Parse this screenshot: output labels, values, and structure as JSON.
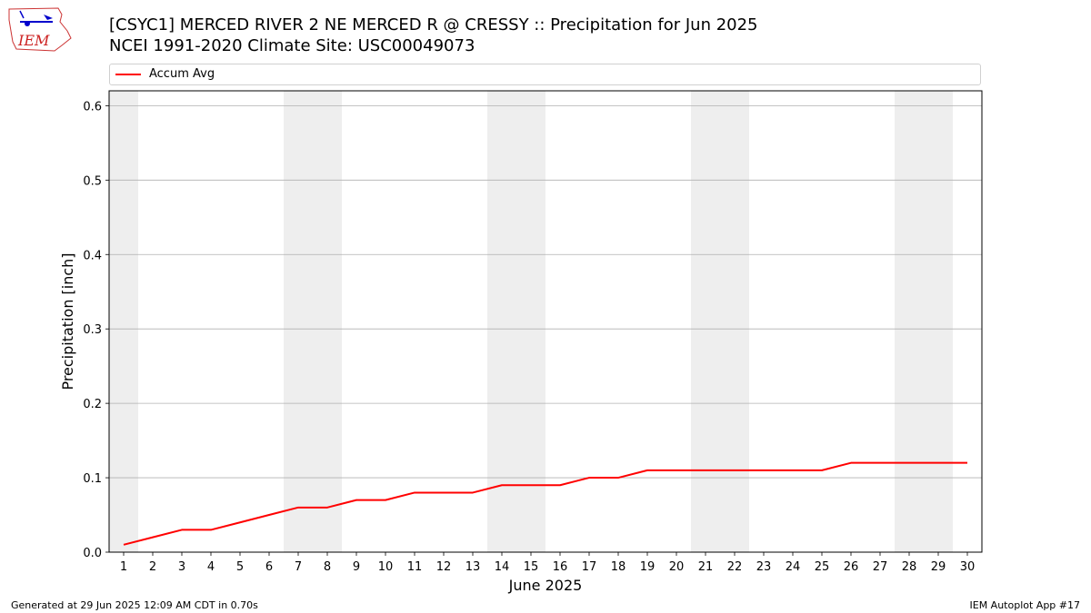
{
  "header": {
    "title_line1": "[CSYC1] MERCED RIVER 2 NE MERCED R @ CRESSY :: Precipitation for Jun 2025",
    "title_line2": "NCEI 1991-2020 Climate Site: USC00049073"
  },
  "logo": {
    "text": "IEM",
    "icon": "iem-logo-icon"
  },
  "footer": {
    "left": "Generated at 29 Jun 2025 12:09 AM CDT in 0.70s",
    "right": "IEM Autoplot App #17"
  },
  "colors": {
    "series": "#ff0000",
    "weekend_band": "#eeeeee",
    "grid": "#b0b0b0"
  },
  "chart_data": {
    "type": "line",
    "xlabel": "June 2025",
    "ylabel": "Precipitation [inch]",
    "x": [
      1,
      2,
      3,
      4,
      5,
      6,
      7,
      8,
      9,
      10,
      11,
      12,
      13,
      14,
      15,
      16,
      17,
      18,
      19,
      20,
      21,
      22,
      23,
      24,
      25,
      26,
      27,
      28,
      29,
      30
    ],
    "xlim": [
      0.5,
      30.5
    ],
    "ylim": [
      0,
      0.62
    ],
    "yticks": [
      0.0,
      0.1,
      0.2,
      0.3,
      0.4,
      0.5,
      0.6
    ],
    "ytick_labels": [
      "0.0",
      "0.1",
      "0.2",
      "0.3",
      "0.4",
      "0.5",
      "0.6"
    ],
    "grid": "y",
    "legend_position": "top",
    "weekend_days": [
      1,
      7,
      8,
      14,
      15,
      21,
      22,
      28,
      29
    ],
    "series": [
      {
        "name": "Accum Avg",
        "values": [
          0.01,
          0.02,
          0.03,
          0.03,
          0.04,
          0.05,
          0.06,
          0.06,
          0.07,
          0.07,
          0.08,
          0.08,
          0.08,
          0.09,
          0.09,
          0.09,
          0.1,
          0.1,
          0.11,
          0.11,
          0.11,
          0.11,
          0.11,
          0.11,
          0.11,
          0.12,
          0.12,
          0.12,
          0.12,
          0.12
        ]
      }
    ]
  }
}
